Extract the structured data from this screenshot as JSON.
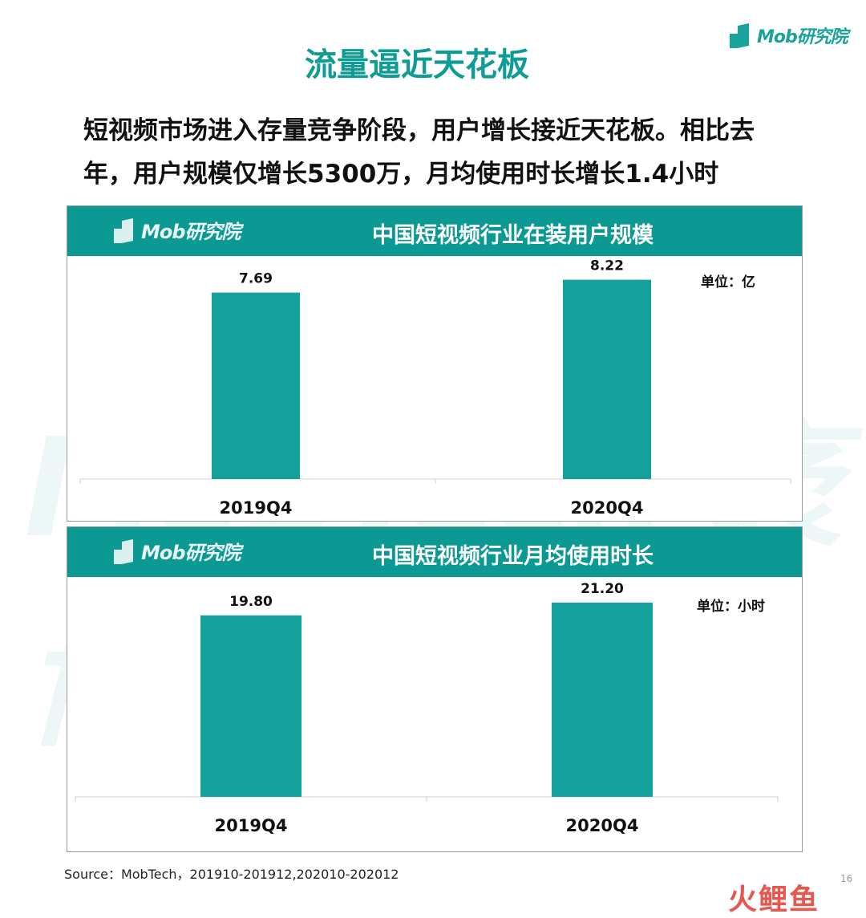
{
  "brand": {
    "logo_text": "Mob研究院"
  },
  "page": {
    "title": "流量逼近天花板",
    "subtitle": "短视频市场进入存量竞争阶段，用户增长接近天花板。相比去年，用户规模仅增长5300万，月均使用时长增长1.4小时",
    "source": "Source：MobTech，201910-201912,202010-202012",
    "page_number": "16",
    "watermark": "MobTech 袤博",
    "corner_logo": "火鲤鱼"
  },
  "colors": {
    "accent": "#0c9994",
    "bar": "#14a09b",
    "title": "#0e9c94"
  },
  "chart_data": [
    {
      "type": "bar",
      "title": "中国短视频行业在装用户规模",
      "unit": "单位：亿",
      "categories": [
        "2019Q4",
        "2020Q4"
      ],
      "values": [
        7.69,
        8.22
      ],
      "value_labels": [
        "7.69",
        "8.22"
      ],
      "ylim": [
        0,
        9.2
      ],
      "grid": false
    },
    {
      "type": "bar",
      "title": "中国短视频行业月均使用时长",
      "unit": "单位：小时",
      "categories": [
        "2019Q4",
        "2020Q4"
      ],
      "values": [
        19.8,
        21.2
      ],
      "value_labels": [
        "19.80",
        "21.20"
      ],
      "ylim": [
        0,
        24.0
      ],
      "grid": false
    }
  ]
}
